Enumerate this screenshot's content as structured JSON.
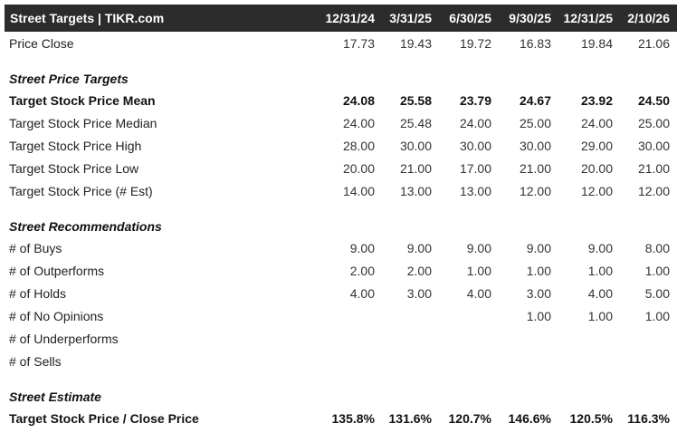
{
  "header": {
    "title": "Street Targets | TIKR.com",
    "columns": [
      "12/31/24",
      "3/31/25",
      "6/30/25",
      "9/30/25",
      "12/31/25",
      "2/10/26"
    ]
  },
  "rows": [
    {
      "label": "Price Close",
      "values": [
        "17.73",
        "19.43",
        "19.72",
        "16.83",
        "19.84",
        "21.06"
      ]
    }
  ],
  "sections": {
    "price_targets": "Street Price Targets",
    "recommendations": "Street Recommendations",
    "estimate": "Street Estimate"
  },
  "price_targets": [
    {
      "label": "Target Stock Price Mean",
      "values": [
        "24.08",
        "25.58",
        "23.79",
        "24.67",
        "23.92",
        "24.50"
      ]
    },
    {
      "label": "Target Stock Price Median",
      "values": [
        "24.00",
        "25.48",
        "24.00",
        "25.00",
        "24.00",
        "25.00"
      ]
    },
    {
      "label": "Target Stock Price High",
      "values": [
        "28.00",
        "30.00",
        "30.00",
        "30.00",
        "29.00",
        "30.00"
      ]
    },
    {
      "label": "Target Stock Price Low",
      "values": [
        "20.00",
        "21.00",
        "17.00",
        "21.00",
        "20.00",
        "21.00"
      ]
    },
    {
      "label": "Target Stock Price (# Est)",
      "values": [
        "14.00",
        "13.00",
        "13.00",
        "12.00",
        "12.00",
        "12.00"
      ]
    }
  ],
  "recommendations": [
    {
      "label": "# of Buys",
      "values": [
        "9.00",
        "9.00",
        "9.00",
        "9.00",
        "9.00",
        "8.00"
      ]
    },
    {
      "label": "# of Outperforms",
      "values": [
        "2.00",
        "2.00",
        "1.00",
        "1.00",
        "1.00",
        "1.00"
      ]
    },
    {
      "label": "# of Holds",
      "values": [
        "4.00",
        "3.00",
        "4.00",
        "3.00",
        "4.00",
        "5.00"
      ]
    },
    {
      "label": "# of No Opinions",
      "values": [
        "",
        "",
        "",
        "1.00",
        "1.00",
        "1.00"
      ]
    },
    {
      "label": "# of Underperforms",
      "values": [
        "",
        "",
        "",
        "",
        "",
        ""
      ]
    },
    {
      "label": "# of Sells",
      "values": [
        "",
        "",
        "",
        "",
        "",
        ""
      ]
    }
  ],
  "estimate": [
    {
      "label": "Target Stock Price / Close Price",
      "values": [
        "135.8%",
        "131.6%",
        "120.7%",
        "146.6%",
        "120.5%",
        "116.3%"
      ]
    }
  ]
}
